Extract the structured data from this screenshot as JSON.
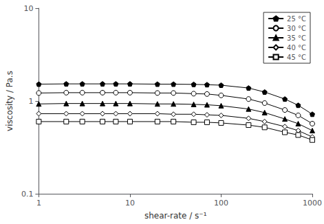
{
  "chart_data": {
    "type": "line",
    "xlabel": "shear-rate / s⁻¹",
    "ylabel": "viscosity / Pa.s",
    "log": true,
    "xlim": [
      1,
      1000
    ],
    "ylim": [
      0.1,
      10
    ],
    "xticks": [
      1,
      10,
      100,
      1000
    ],
    "yticks": [
      0.1,
      1,
      10
    ],
    "grid": false,
    "legend": "upper right",
    "x": [
      1,
      2,
      3,
      5,
      7,
      10,
      20,
      30,
      50,
      70,
      100,
      200,
      300,
      500,
      700,
      1000
    ],
    "series": [
      {
        "name": "25 °C",
        "color": "black",
        "marker": "filled-pentagon",
        "values": [
          1.52,
          1.53,
          1.53,
          1.53,
          1.53,
          1.53,
          1.52,
          1.52,
          1.51,
          1.5,
          1.48,
          1.38,
          1.25,
          1.05,
          0.9,
          0.72
        ]
      },
      {
        "name": "30 °C",
        "color": "black",
        "marker": "open-circle",
        "values": [
          1.22,
          1.23,
          1.23,
          1.23,
          1.23,
          1.23,
          1.22,
          1.22,
          1.2,
          1.19,
          1.15,
          1.05,
          0.95,
          0.8,
          0.7,
          0.57
        ]
      },
      {
        "name": "35 °C",
        "color": "black",
        "marker": "filled-triangle",
        "values": [
          0.93,
          0.94,
          0.94,
          0.94,
          0.94,
          0.94,
          0.93,
          0.93,
          0.92,
          0.91,
          0.89,
          0.82,
          0.75,
          0.64,
          0.57,
          0.48
        ]
      },
      {
        "name": "40 °C",
        "color": "black",
        "marker": "open-diamond",
        "values": [
          0.73,
          0.73,
          0.73,
          0.73,
          0.73,
          0.73,
          0.73,
          0.72,
          0.72,
          0.71,
          0.7,
          0.65,
          0.6,
          0.53,
          0.48,
          0.41
        ]
      },
      {
        "name": "45 °C",
        "color": "black",
        "marker": "open-square",
        "values": [
          0.6,
          0.6,
          0.6,
          0.6,
          0.6,
          0.6,
          0.6,
          0.6,
          0.59,
          0.59,
          0.58,
          0.55,
          0.52,
          0.46,
          0.43,
          0.38
        ]
      }
    ]
  }
}
